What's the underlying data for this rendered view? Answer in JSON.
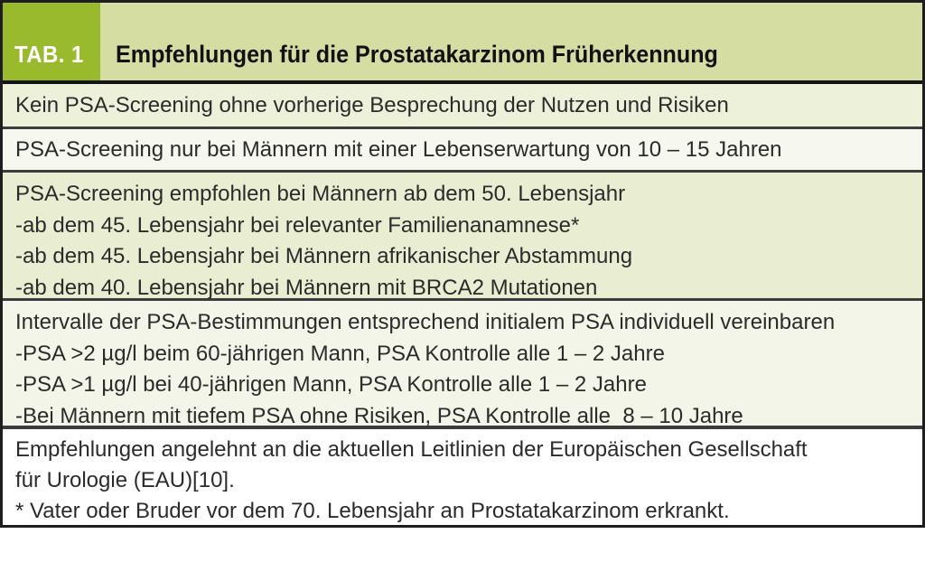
{
  "header": {
    "tab_label": "TAB. 1",
    "title": "Empfehlungen für die Prostatakarzinom Früherkennung"
  },
  "rows": [
    {
      "lines": [
        "Kein PSA-Screening ohne vorherige Besprechung der Nutzen und Risiken"
      ]
    },
    {
      "lines": [
        "PSA-Screening nur bei Männern mit einer Lebenserwartung von 10 – 15 Jahren"
      ]
    },
    {
      "lines": [
        "PSA-Screening empfohlen bei Männern ab dem 50. Lebensjahr",
        "-ab dem 45. Lebensjahr bei relevanter Familienanamnese*",
        "-ab dem 45. Lebensjahr bei Männern afrikanischer Abstammung",
        "-ab dem 40. Lebensjahr bei Männern mit BRCA2 Mutationen"
      ]
    },
    {
      "lines": [
        "Intervalle der PSA-Bestimmungen entsprechend initialem PSA individuell vereinbaren",
        "-PSA >2 µg/l beim 60-jährigen Mann, PSA Kontrolle alle 1 – 2 Jahre",
        "-PSA >1 µg/l bei 40-jährigen Mann, PSA Kontrolle alle 1 – 2 Jahre",
        "-Bei Männern mit tiefem PSA ohne Risiken, PSA Kontrolle alle  8 – 10 Jahre"
      ]
    },
    {
      "lines": [
        "Empfehlungen angelehnt an die aktuellen Leitlinien der Europäischen Gesellschaft",
        "für Urologie (EAU)[10].",
        "* Vater oder Bruder vor dem 70. Lebensjahr an Prostatakarzinom erkrankt."
      ]
    }
  ],
  "colors": {
    "badge_green": "#9aba2e",
    "header_band_green": "#d5dda2",
    "row_light_green": "#e9eed3",
    "row_ivory": "#f4f5e9",
    "row_white": "#ffffff",
    "border_dark": "#1e1e1e",
    "text_dark": "#2b2b2b"
  }
}
